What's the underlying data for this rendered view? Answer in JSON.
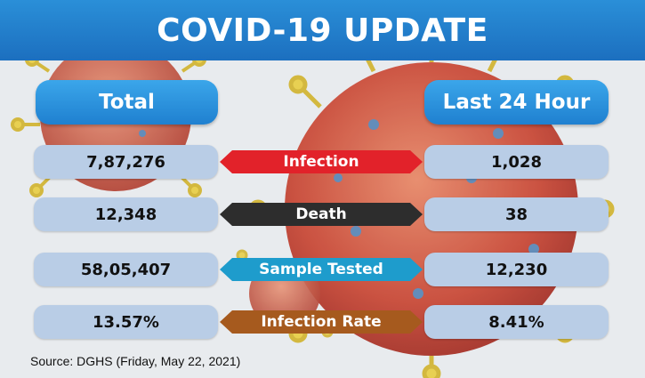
{
  "title": "COVID-19 UPDATE",
  "headers": {
    "left": "Total",
    "right": "Last 24 Hour"
  },
  "rows": [
    {
      "label": "Infection",
      "total": "7,87,276",
      "last24": "1,028",
      "color": "#e2222a"
    },
    {
      "label": "Death",
      "total": "12,348",
      "last24": "38",
      "color": "#2d2d2d"
    },
    {
      "label": "Sample Tested",
      "total": "58,05,407",
      "last24": "12,230",
      "color": "#1e9ccc"
    },
    {
      "label": "Infection Rate",
      "total": "13.57%",
      "last24": "8.41%",
      "color": "#a65a1e"
    }
  ],
  "source": "Source: DGHS (Friday, May 22, 2021)"
}
